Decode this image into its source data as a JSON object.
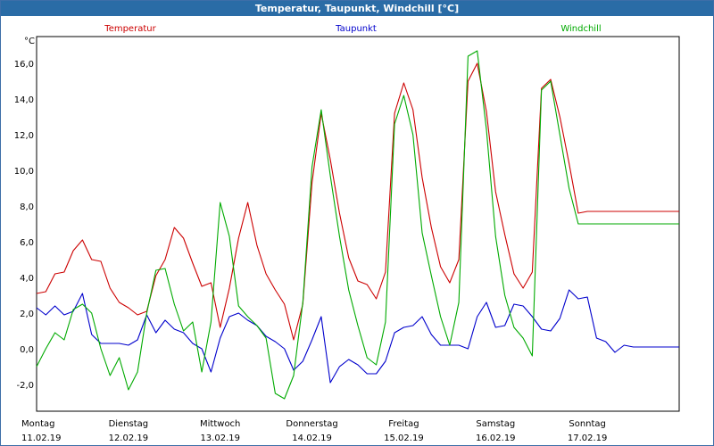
{
  "window": {
    "title": "Temperatur, Taupunkt, Windchill [°C]"
  },
  "chart_data": {
    "type": "line",
    "title": "Temperatur, Taupunkt, Windchill [°C]",
    "ylabel": "°C",
    "ylim": [
      -3.5,
      17.5
    ],
    "xlim": [
      0,
      7
    ],
    "grid": true,
    "legend_placement": "top",
    "y_ticks": [
      "-2,0",
      "0,0",
      "2,0",
      "4,0",
      "6,0",
      "8,0",
      "10,0",
      "12,0",
      "14,0",
      "16,0"
    ],
    "x_ticks": [
      {
        "day": "Montag",
        "date": "11.02.19"
      },
      {
        "day": "Dienstag",
        "date": "12.02.19"
      },
      {
        "day": "Mittwoch",
        "date": "13.02.19"
      },
      {
        "day": "Donnerstag",
        "date": "14.02.19"
      },
      {
        "day": "Freitag",
        "date": "15.02.19"
      },
      {
        "day": "Samstag",
        "date": "16.02.19"
      },
      {
        "day": "Sonntag",
        "date": "17.02.19"
      }
    ],
    "series": [
      {
        "name": "Temperatur",
        "color": "#cc0000",
        "x": [
          0,
          0.1,
          0.2,
          0.3,
          0.4,
          0.5,
          0.6,
          0.7,
          0.8,
          0.9,
          1.0,
          1.1,
          1.2,
          1.3,
          1.4,
          1.5,
          1.6,
          1.7,
          1.8,
          1.9,
          2.0,
          2.1,
          2.2,
          2.3,
          2.4,
          2.5,
          2.6,
          2.7,
          2.8,
          2.9,
          3.0,
          3.1,
          3.2,
          3.3,
          3.4,
          3.5,
          3.6,
          3.7,
          3.8,
          3.9,
          4.0,
          4.1,
          4.2,
          4.3,
          4.4,
          4.5,
          4.6,
          4.7,
          4.8,
          4.9,
          5.0,
          5.1,
          5.2,
          5.3,
          5.4,
          5.5,
          5.6,
          5.7,
          5.8,
          5.9,
          6.0,
          6.1,
          6.2,
          6.3,
          6.4,
          6.5,
          6.6,
          6.7,
          6.8,
          6.9,
          7.0
        ],
        "y": [
          3.1,
          3.2,
          4.2,
          4.3,
          5.5,
          6.1,
          5.0,
          4.9,
          3.4,
          2.6,
          2.3,
          1.9,
          2.1,
          4.1,
          5.0,
          6.8,
          6.2,
          4.8,
          3.5,
          3.7,
          1.2,
          3.4,
          6.2,
          8.2,
          5.8,
          4.2,
          3.3,
          2.5,
          0.5,
          2.5,
          9.3,
          13.2,
          10.6,
          7.6,
          5.1,
          3.8,
          3.6,
          2.8,
          4.3,
          13.2,
          14.9,
          13.4,
          9.6,
          6.8,
          4.6,
          3.7,
          5.0,
          15.0,
          16.0,
          13.3,
          8.8,
          6.4,
          4.2,
          3.4,
          4.3,
          14.6,
          15.1,
          13.0,
          10.4,
          7.6,
          7.7,
          7.7,
          7.7,
          7.7,
          7.7,
          7.7,
          7.7,
          7.7,
          7.7,
          7.7,
          7.7
        ]
      },
      {
        "name": "Taupunkt",
        "color": "#0000cc",
        "x": [
          0,
          0.1,
          0.2,
          0.3,
          0.4,
          0.5,
          0.6,
          0.7,
          0.8,
          0.9,
          1.0,
          1.1,
          1.2,
          1.3,
          1.4,
          1.5,
          1.6,
          1.7,
          1.8,
          1.9,
          2.0,
          2.1,
          2.2,
          2.3,
          2.4,
          2.5,
          2.6,
          2.7,
          2.8,
          2.9,
          3.0,
          3.1,
          3.2,
          3.3,
          3.4,
          3.5,
          3.6,
          3.7,
          3.8,
          3.9,
          4.0,
          4.1,
          4.2,
          4.3,
          4.4,
          4.5,
          4.6,
          4.7,
          4.8,
          4.9,
          5.0,
          5.1,
          5.2,
          5.3,
          5.4,
          5.5,
          5.6,
          5.7,
          5.8,
          5.9,
          6.0,
          6.1,
          6.2,
          6.3,
          6.4,
          6.5,
          6.6,
          6.7,
          6.8,
          6.9,
          7.0
        ],
        "y": [
          2.3,
          1.9,
          2.4,
          1.9,
          2.1,
          3.1,
          0.8,
          0.3,
          0.3,
          0.3,
          0.2,
          0.5,
          1.9,
          0.9,
          1.6,
          1.1,
          0.9,
          0.3,
          0.0,
          -1.3,
          0.6,
          1.8,
          2.0,
          1.6,
          1.3,
          0.7,
          0.4,
          0.0,
          -1.2,
          -0.7,
          0.5,
          1.8,
          -1.9,
          -1.0,
          -0.6,
          -0.9,
          -1.4,
          -1.4,
          -0.7,
          0.9,
          1.2,
          1.3,
          1.8,
          0.8,
          0.2,
          0.2,
          0.2,
          0.0,
          1.8,
          2.6,
          1.2,
          1.3,
          2.5,
          2.4,
          1.8,
          1.1,
          1.0,
          1.7,
          3.3,
          2.8,
          2.9,
          0.6,
          0.4,
          -0.2,
          0.2,
          0.1,
          0.1,
          0.1,
          0.1,
          0.1,
          0.1
        ]
      },
      {
        "name": "Windchill",
        "color": "#00aa00",
        "x": [
          0,
          0.1,
          0.2,
          0.3,
          0.4,
          0.5,
          0.6,
          0.7,
          0.8,
          0.9,
          1.0,
          1.1,
          1.2,
          1.3,
          1.4,
          1.5,
          1.6,
          1.7,
          1.8,
          1.9,
          2.0,
          2.1,
          2.2,
          2.3,
          2.4,
          2.5,
          2.6,
          2.7,
          2.8,
          2.9,
          3.0,
          3.1,
          3.2,
          3.3,
          3.4,
          3.5,
          3.6,
          3.7,
          3.8,
          3.9,
          4.0,
          4.1,
          4.2,
          4.3,
          4.4,
          4.5,
          4.6,
          4.7,
          4.8,
          4.9,
          5.0,
          5.1,
          5.2,
          5.3,
          5.4,
          5.5,
          5.6,
          5.7,
          5.8,
          5.9,
          6.0,
          6.1,
          6.2,
          6.3,
          6.4,
          6.5,
          6.6,
          6.7,
          6.8,
          6.9,
          7.0
        ],
        "y": [
          -1.0,
          0.0,
          0.9,
          0.5,
          2.2,
          2.5,
          2.0,
          0.0,
          -1.5,
          -0.5,
          -2.3,
          -1.3,
          2.0,
          4.4,
          4.5,
          2.5,
          1.0,
          1.5,
          -1.3,
          1.5,
          8.2,
          6.3,
          2.4,
          1.8,
          1.3,
          0.6,
          -2.5,
          -2.8,
          -1.5,
          2.6,
          10.2,
          13.4,
          9.7,
          6.3,
          3.3,
          1.3,
          -0.5,
          -0.9,
          1.5,
          12.6,
          14.2,
          12.0,
          6.5,
          4.1,
          1.8,
          0.2,
          2.6,
          16.4,
          16.7,
          12.3,
          6.3,
          3.0,
          1.2,
          0.6,
          -0.4,
          14.5,
          15.0,
          12.0,
          9.0,
          7.0,
          7.0,
          7.0,
          7.0,
          7.0,
          7.0,
          7.0,
          7.0,
          7.0,
          7.0,
          7.0,
          7.0
        ]
      }
    ]
  }
}
